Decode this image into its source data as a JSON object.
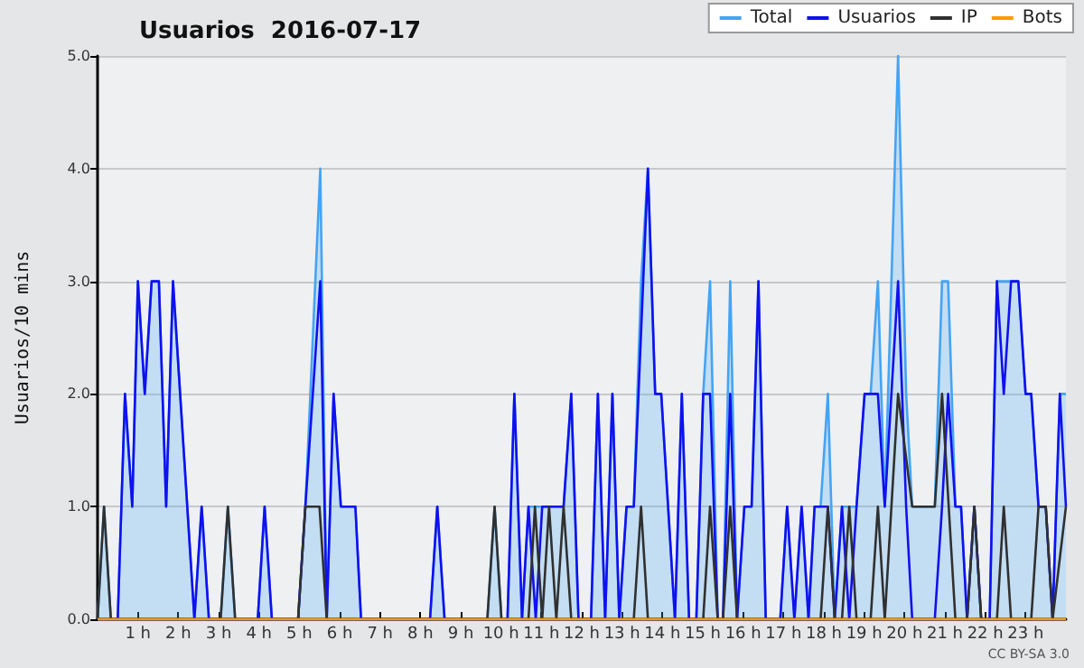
{
  "chart_data": {
    "type": "line",
    "title": "Usuarios  2016-07-17",
    "ylabel": "Usuarios/10 mins",
    "annotations": [
      "CC BY-SA 3.0"
    ],
    "xlim": [
      0,
      24
    ],
    "xticks": [
      {
        "value": 1,
        "label": "1 h"
      },
      {
        "value": 2,
        "label": "2 h"
      },
      {
        "value": 3,
        "label": "3 h"
      },
      {
        "value": 4,
        "label": "4 h"
      },
      {
        "value": 5,
        "label": "5 h"
      },
      {
        "value": 6,
        "label": "6 h"
      },
      {
        "value": 7,
        "label": "7 h"
      },
      {
        "value": 8,
        "label": "8 h"
      },
      {
        "value": 9,
        "label": "9 h"
      },
      {
        "value": 10,
        "label": "10 h"
      },
      {
        "value": 11,
        "label": "11 h"
      },
      {
        "value": 12,
        "label": "12 h"
      },
      {
        "value": 13,
        "label": "13 h"
      },
      {
        "value": 14,
        "label": "14 h"
      },
      {
        "value": 15,
        "label": "15 h"
      },
      {
        "value": 16,
        "label": "16 h"
      },
      {
        "value": 17,
        "label": "17 h"
      },
      {
        "value": 18,
        "label": "18 h"
      },
      {
        "value": 19,
        "label": "19 h"
      },
      {
        "value": 20,
        "label": "20 h"
      },
      {
        "value": 21,
        "label": "21 h"
      },
      {
        "value": 22,
        "label": "22 h"
      },
      {
        "value": 23,
        "label": "23 h"
      }
    ],
    "ylim": [
      0,
      5
    ],
    "yticks": [
      {
        "value": 0,
        "label": "0.0"
      },
      {
        "value": 1,
        "label": "1.0"
      },
      {
        "value": 2,
        "label": "2.0"
      },
      {
        "value": 3,
        "label": "3.0"
      },
      {
        "value": 4,
        "label": "4.0"
      },
      {
        "value": 5,
        "label": "5.0"
      }
    ],
    "grid": "y",
    "legend": "top right",
    "marker": "none",
    "series": [
      {
        "name": "Total",
        "type": "area",
        "color": "#44a4f4",
        "x": [
          0,
          0.16,
          0.33,
          0.5,
          0.68,
          0.86,
          1.0,
          1.17,
          1.34,
          1.52,
          1.7,
          1.87,
          2.4,
          2.58,
          2.76,
          3.05,
          3.23,
          3.41,
          3.97,
          4.14,
          4.32,
          4.97,
          5.15,
          5.52,
          5.68,
          5.85,
          6.03,
          6.39,
          6.53,
          8.24,
          8.42,
          8.6,
          9.66,
          9.84,
          10.01,
          10.16,
          10.33,
          10.52,
          10.68,
          10.86,
          11.02,
          11.37,
          11.55,
          11.74,
          11.92,
          12.23,
          12.4,
          12.58,
          12.76,
          12.93,
          13.11,
          13.29,
          13.47,
          13.64,
          13.82,
          13.97,
          14.31,
          14.48,
          14.66,
          14.84,
          15.01,
          15.18,
          15.37,
          15.5,
          15.68,
          15.85,
          16.03,
          16.21,
          16.38,
          16.56,
          16.92,
          17.09,
          17.27,
          17.45,
          17.62,
          17.77,
          17.92,
          18.1,
          18.27,
          18.45,
          18.63,
          18.81,
          19.01,
          19.16,
          19.34,
          19.51,
          19.84,
          20.04,
          20.19,
          20.75,
          20.93,
          21.08,
          21.26,
          21.4,
          21.55,
          21.73,
          21.9,
          22.11,
          22.29,
          22.46,
          22.82,
          23.0,
          23.14,
          23.32,
          23.5,
          23.67,
          23.85,
          24.0
        ],
        "values": [
          0,
          1,
          0,
          0,
          2,
          1,
          3,
          2,
          3,
          3,
          1,
          3,
          0,
          1,
          0,
          0,
          1,
          0,
          0,
          1,
          0,
          0,
          1,
          4,
          0,
          2,
          1,
          1,
          0,
          0,
          1,
          0,
          0,
          1,
          0,
          0,
          2,
          0,
          1,
          1,
          1,
          1,
          1,
          2,
          0,
          0,
          2,
          0,
          2,
          0,
          1,
          1,
          3,
          4,
          2,
          2,
          0,
          2,
          0,
          0,
          2,
          3,
          0,
          0,
          3,
          0,
          1,
          1,
          3,
          0,
          0,
          1,
          0,
          1,
          0,
          1,
          1,
          2,
          0,
          1,
          1,
          1,
          2,
          2,
          3,
          1,
          5,
          2,
          1,
          1,
          3,
          3,
          1,
          1,
          0,
          1,
          0,
          0,
          3,
          3,
          3,
          2,
          2,
          1,
          1,
          0,
          2,
          2
        ]
      },
      {
        "name": "Usuarios",
        "type": "line",
        "color": "#1010f0",
        "x": [
          0,
          0.5,
          0.68,
          0.86,
          1.0,
          1.17,
          1.34,
          1.52,
          1.7,
          1.87,
          2.4,
          2.58,
          2.76,
          3.97,
          4.14,
          4.32,
          4.97,
          5.15,
          5.52,
          5.68,
          5.85,
          6.03,
          6.39,
          6.53,
          8.24,
          8.42,
          8.6,
          10.16,
          10.33,
          10.52,
          10.68,
          10.86,
          11.02,
          11.55,
          11.74,
          11.92,
          12.23,
          12.4,
          12.58,
          12.76,
          12.93,
          13.11,
          13.29,
          13.64,
          13.82,
          13.97,
          14.31,
          14.48,
          14.66,
          14.84,
          15.01,
          15.18,
          15.37,
          15.5,
          15.68,
          15.85,
          16.03,
          16.21,
          16.38,
          16.56,
          16.92,
          17.09,
          17.27,
          17.45,
          17.62,
          17.77,
          18.1,
          18.27,
          18.45,
          18.63,
          18.81,
          19.01,
          19.34,
          19.51,
          19.84,
          20.04,
          20.19,
          20.75,
          20.93,
          21.08,
          21.26,
          21.4,
          21.55,
          21.73,
          21.9,
          22.11,
          22.29,
          22.46,
          22.64,
          22.82,
          23.0,
          23.14,
          23.32,
          23.5,
          23.67,
          23.85,
          24.0
        ],
        "values": [
          0,
          0,
          2,
          1,
          3,
          2,
          3,
          3,
          1,
          3,
          0,
          1,
          0,
          0,
          1,
          0,
          0,
          1,
          3,
          0,
          2,
          1,
          1,
          0,
          0,
          1,
          0,
          0,
          2,
          0,
          1,
          0,
          1,
          1,
          2,
          0,
          0,
          2,
          0,
          2,
          0,
          1,
          1,
          4,
          2,
          2,
          0,
          2,
          0,
          0,
          2,
          2,
          0,
          0,
          2,
          0,
          1,
          1,
          3,
          0,
          0,
          1,
          0,
          1,
          0,
          1,
          1,
          0,
          1,
          0,
          1,
          2,
          2,
          1,
          3,
          1,
          0,
          0,
          1,
          2,
          1,
          1,
          0,
          1,
          0,
          0,
          3,
          2,
          3,
          3,
          2,
          2,
          1,
          1,
          0,
          2,
          1
        ]
      },
      {
        "name": "IP",
        "type": "line",
        "color": "#303030",
        "x": [
          0,
          0.16,
          0.33,
          3.05,
          3.23,
          3.41,
          4.97,
          5.15,
          5.5,
          5.68,
          9.66,
          9.84,
          10.01,
          10.68,
          10.84,
          11.02,
          11.19,
          11.37,
          11.55,
          11.74,
          13.29,
          13.47,
          13.64,
          15.01,
          15.18,
          15.37,
          15.5,
          15.68,
          15.85,
          17.92,
          18.1,
          18.27,
          18.45,
          18.63,
          18.81,
          19.16,
          19.34,
          19.51,
          19.84,
          20.19,
          20.75,
          20.93,
          21.26,
          21.55,
          21.73,
          21.9,
          22.29,
          22.46,
          22.64,
          23.14,
          23.32,
          23.5,
          23.67,
          24.0
        ],
        "values": [
          0,
          1,
          0,
          0,
          1,
          0,
          0,
          1,
          1,
          0,
          0,
          1,
          0,
          0,
          1,
          0,
          1,
          0,
          1,
          0,
          0,
          1,
          0,
          0,
          1,
          0,
          0,
          1,
          0,
          0,
          1,
          0,
          0,
          1,
          0,
          0,
          1,
          0,
          2,
          1,
          1,
          2,
          0,
          0,
          1,
          0,
          0,
          1,
          0,
          0,
          1,
          1,
          0,
          1
        ]
      },
      {
        "name": "Bots",
        "type": "line",
        "color": "#ff9900",
        "x": [
          0,
          24
        ],
        "values": [
          0,
          0
        ]
      }
    ]
  }
}
